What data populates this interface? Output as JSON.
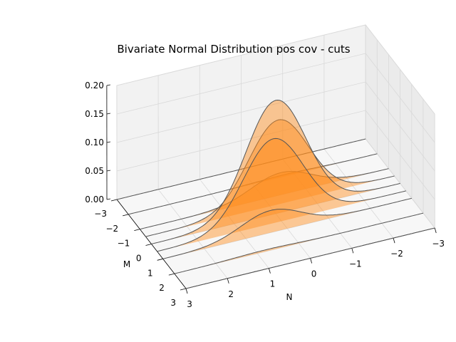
{
  "chart_data": {
    "type": "area",
    "title": "Bivariate Normal Distribution pos cov - cuts",
    "xlabel": "N",
    "ylabel": "M",
    "zlabel": "",
    "x_ticks": [
      "3",
      "2",
      "1",
      "0",
      "−1",
      "−2",
      "−3"
    ],
    "y_ticks": [
      "−3",
      "−2",
      "−1",
      "0",
      "1",
      "2",
      "3"
    ],
    "z_ticks": [
      "0.00",
      "0.05",
      "0.10",
      "0.15",
      "0.20"
    ],
    "xlim": [
      -3,
      3
    ],
    "ylim": [
      -3,
      3
    ],
    "zlim": [
      0,
      0.2
    ],
    "grid": true,
    "fill_color": "#ff8c1a",
    "edge_color": "#555555",
    "series": [
      {
        "m": -3.0,
        "peak": 0.0002,
        "peak_n": -1.2
      },
      {
        "m": -2.0,
        "peak": 0.003,
        "peak_n": -0.8
      },
      {
        "m": -1.0,
        "peak": 0.039,
        "peak_n": -0.4
      },
      {
        "m": -0.5,
        "peak": 0.148,
        "peak_n": -0.2
      },
      {
        "m": 0.0,
        "peak": 0.199,
        "peak_n": 0.0
      },
      {
        "m": 0.5,
        "peak": 0.148,
        "peak_n": 0.2
      },
      {
        "m": 1.0,
        "peak": 0.039,
        "peak_n": 0.4
      },
      {
        "m": 2.0,
        "peak": 0.003,
        "peak_n": 0.8
      },
      {
        "m": 3.0,
        "peak": 0.0002,
        "peak_n": 1.2
      }
    ]
  }
}
